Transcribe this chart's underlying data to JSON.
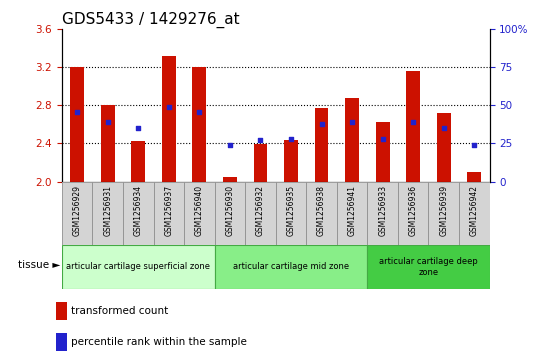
{
  "title": "GDS5433 / 1429276_at",
  "samples": [
    "GSM1256929",
    "GSM1256931",
    "GSM1256934",
    "GSM1256937",
    "GSM1256940",
    "GSM1256930",
    "GSM1256932",
    "GSM1256935",
    "GSM1256938",
    "GSM1256941",
    "GSM1256933",
    "GSM1256936",
    "GSM1256939",
    "GSM1256942"
  ],
  "bar_values": [
    3.2,
    2.8,
    2.43,
    3.32,
    3.2,
    2.05,
    2.39,
    2.44,
    2.77,
    2.88,
    2.62,
    3.16,
    2.72,
    2.1
  ],
  "blue_dot_values": [
    2.73,
    2.62,
    2.56,
    2.78,
    2.73,
    2.38,
    2.44,
    2.45,
    2.6,
    2.62,
    2.45,
    2.62,
    2.56,
    2.38
  ],
  "bar_base": 2.0,
  "ylim_left": [
    2.0,
    3.6
  ],
  "ylim_right": [
    0,
    100
  ],
  "yticks_left": [
    2.0,
    2.4,
    2.8,
    3.2,
    3.6
  ],
  "yticks_right": [
    0,
    25,
    50,
    75,
    100
  ],
  "right_tick_labels": [
    "0",
    "25",
    "50",
    "75",
    "100%"
  ],
  "bar_color": "#cc1100",
  "dot_color": "#2222cc",
  "grid_color": "#000000",
  "bg_color": "#ffffff",
  "plot_bg": "#ffffff",
  "tick_bg": "#cccccc",
  "tissue_groups": [
    {
      "label": "articular cartilage superficial zone",
      "start": 0,
      "end": 5,
      "color": "#ccffcc",
      "border": "#44aa44"
    },
    {
      "label": "articular cartilage mid zone",
      "start": 5,
      "end": 10,
      "color": "#88ee88",
      "border": "#44aa44"
    },
    {
      "label": "articular cartilage deep\nzone",
      "start": 10,
      "end": 14,
      "color": "#44cc44",
      "border": "#44aa44"
    }
  ],
  "tissue_label": "tissue ►",
  "legend_bar_label": "transformed count",
  "legend_dot_label": "percentile rank within the sample",
  "left_axis_color": "#cc1100",
  "right_axis_color": "#2222cc",
  "title_fontsize": 11,
  "bar_width": 0.45
}
